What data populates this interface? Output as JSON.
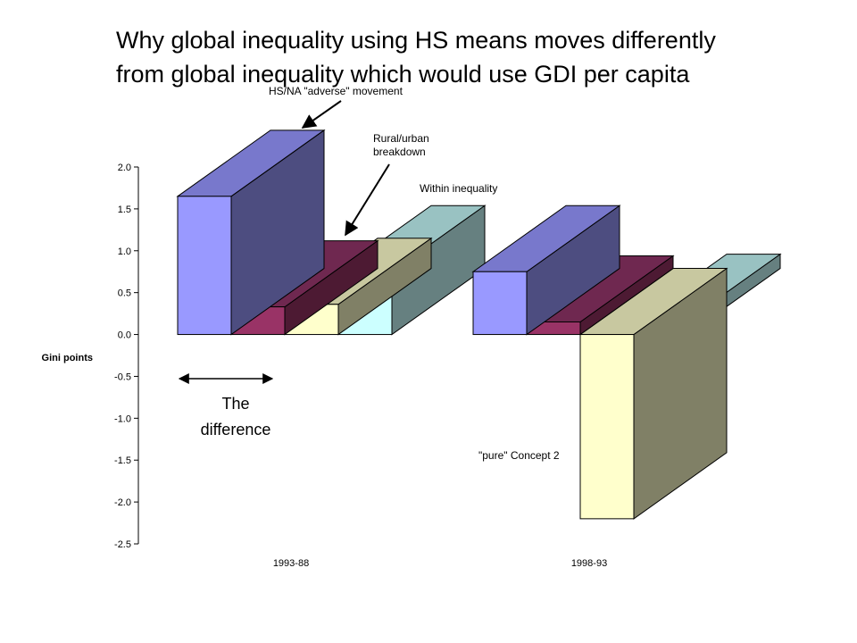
{
  "title_line1": "Why global inequality using HS means moves differently",
  "title_line2": "from global inequality which would use GDI per capita",
  "chart_data": {
    "type": "bar",
    "subtype": "3d-bar",
    "title": "",
    "xlabel": "",
    "ylabel": "Gini points",
    "ylim": [
      -2.5,
      2.0
    ],
    "yticks": [
      "2.0",
      "1.5",
      "1.0",
      "0.5",
      "0.0",
      "-0.5",
      "-1.0",
      "-1.5",
      "-2.0",
      "-2.5"
    ],
    "ytick_values": [
      2.0,
      1.5,
      1.0,
      0.5,
      0.0,
      -0.5,
      -1.0,
      -1.5,
      -2.0,
      -2.5
    ],
    "categories": [
      "1993-88",
      "1998-93"
    ],
    "series": [
      {
        "values": [
          1.65,
          0.75
        ],
        "colors": {
          "front": "#9999ff",
          "top": "#7878cc",
          "side": "#4d4d80"
        }
      },
      {
        "values": [
          0.33,
          0.15
        ],
        "colors": {
          "front": "#993366",
          "top": "#6f2850",
          "side": "#4d1a33"
        }
      },
      {
        "values": [
          0.36,
          -2.2
        ],
        "colors": {
          "front": "#ffffcc",
          "top": "#c8c8a0",
          "side": "#808066"
        }
      },
      {
        "values": [
          0.75,
          0.17
        ],
        "colors": {
          "front": "#ccffff",
          "top": "#99c2c2",
          "side": "#668080"
        }
      }
    ],
    "legend": "none",
    "grid": false,
    "annotations": [
      {
        "text": "HS/NA \"adverse\" movement"
      },
      {
        "text_line1": "Rural/urban",
        "text_line2": "breakdown"
      },
      {
        "text": "Within inequality"
      },
      {
        "text": "\"pure\" Concept 2"
      }
    ],
    "difference_label_line1": "The",
    "difference_label_line2": "difference"
  }
}
